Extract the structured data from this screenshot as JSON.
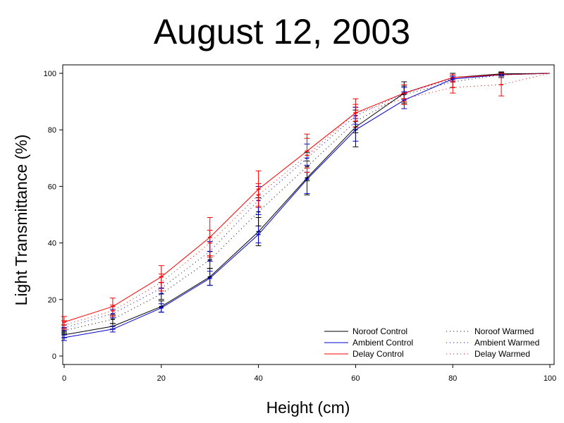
{
  "chart_data": {
    "type": "line",
    "title": "August 12, 2003",
    "xlabel": "Height (cm)",
    "ylabel": "Light Transmittance (%)",
    "xlim": [
      0,
      100
    ],
    "ylim": [
      0,
      100
    ],
    "xticks": [
      0,
      20,
      40,
      60,
      80,
      100
    ],
    "yticks": [
      0,
      20,
      40,
      60,
      80,
      100
    ],
    "grid": false,
    "legend_position": "bottom-right",
    "series": [
      {
        "name": "Noroof Control",
        "color": "#000000",
        "style": "solid",
        "x": [
          0,
          10,
          20,
          30,
          40,
          50,
          60,
          70,
          80,
          90,
          100
        ],
        "y": [
          7.5,
          10.5,
          17.5,
          28,
          44,
          63,
          81,
          93,
          98.5,
          99.8,
          100
        ],
        "err": [
          1,
          1,
          2,
          3,
          5,
          6,
          7,
          4,
          1.5,
          0.5,
          0
        ]
      },
      {
        "name": "Ambient Control",
        "color": "#0000cc",
        "style": "solid",
        "x": [
          0,
          10,
          20,
          30,
          40,
          50,
          60,
          70,
          80,
          90,
          100
        ],
        "y": [
          6.5,
          9.5,
          17,
          27.5,
          43,
          62.5,
          80,
          90.5,
          98,
          99.5,
          100
        ],
        "err": [
          1,
          1,
          1.5,
          2.5,
          3,
          5,
          4,
          3,
          1,
          0.5,
          0
        ]
      },
      {
        "name": "Delay Control",
        "color": "#ff0000",
        "style": "solid",
        "x": [
          0,
          10,
          20,
          30,
          40,
          50,
          60,
          70,
          80,
          90,
          100
        ],
        "y": [
          12,
          17.5,
          28,
          42,
          59,
          72.5,
          86,
          93,
          98.5,
          99.5,
          100
        ],
        "err": [
          2,
          3,
          4,
          7,
          6.5,
          6,
          5,
          3,
          1,
          0.5,
          0
        ]
      },
      {
        "name": "Noroof Warmed",
        "color": "#000000",
        "style": "dotted",
        "x": [
          0,
          10,
          20,
          30,
          40,
          50,
          60,
          70,
          80,
          90,
          100
        ],
        "y": [
          9,
          13,
          22,
          34,
          51,
          67,
          83,
          92.5,
          97,
          99.5,
          100
        ],
        "err": [
          1,
          1.5,
          2,
          3,
          5,
          5,
          4,
          3,
          2,
          1,
          0
        ]
      },
      {
        "name": "Ambient Warmed",
        "color": "#0000cc",
        "style": "dotted",
        "x": [
          0,
          10,
          20,
          30,
          40,
          50,
          60,
          70,
          80,
          90,
          100
        ],
        "y": [
          10,
          15,
          24,
          37,
          55,
          70,
          85,
          93,
          98,
          99.5,
          100
        ],
        "err": [
          1,
          1.5,
          2,
          3.5,
          5,
          5,
          3,
          2,
          1,
          0.5,
          0
        ]
      },
      {
        "name": "Delay Warmed",
        "color": "#ff0000",
        "style": "dotted",
        "x": [
          0,
          10,
          20,
          30,
          40,
          50,
          60,
          70,
          80,
          90,
          100
        ],
        "y": [
          11,
          16,
          26,
          40,
          57,
          71,
          86,
          91,
          95,
          96,
          100
        ],
        "err": [
          1.5,
          2,
          3,
          4.5,
          4,
          6,
          3,
          2,
          2,
          4,
          0
        ]
      }
    ]
  }
}
